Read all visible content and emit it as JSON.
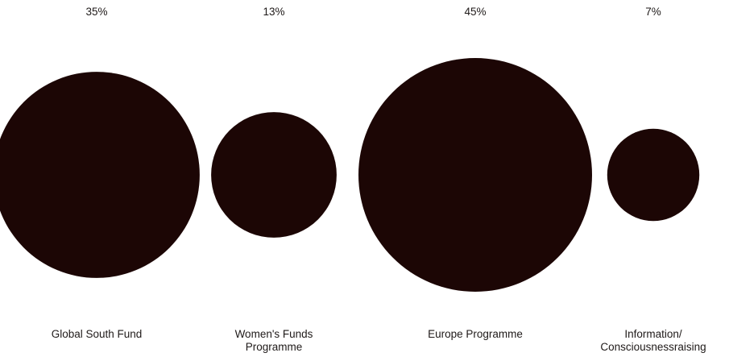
{
  "chart_data": {
    "type": "bubble",
    "categories": [
      [
        "Global South Fund"
      ],
      [
        "Women's Funds",
        "Programme"
      ],
      [
        "Europe Programme"
      ],
      [
        "Information/",
        "Consciousnessraising"
      ]
    ],
    "values": [
      35,
      13,
      45,
      7
    ],
    "value_labels": [
      "35%",
      "13%",
      "45%",
      "7%"
    ],
    "title": "",
    "xlabel": "",
    "ylabel": "",
    "grid": false,
    "legend": "none"
  },
  "colors": {
    "bubble": "#1c0605",
    "text": "#1f1a19",
    "background": "#ffffff"
  }
}
